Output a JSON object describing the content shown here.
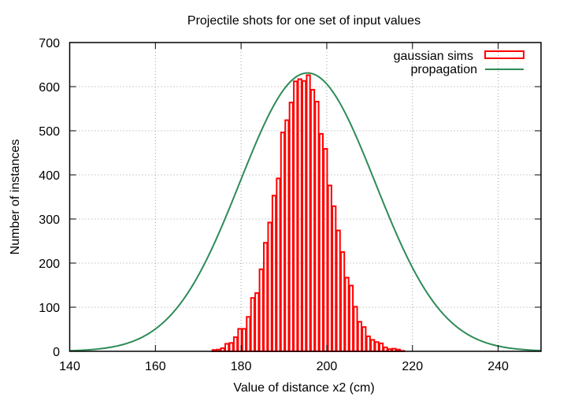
{
  "chart_data": {
    "type": "bar",
    "title": "Projectile shots for one set of input values",
    "xlabel": "Value of distance x2 (cm)",
    "ylabel": "Number of instances",
    "xlim": [
      140,
      250
    ],
    "ylim": [
      0,
      700
    ],
    "xticks": [
      "140",
      "160",
      "180",
      "200",
      "220",
      "240"
    ],
    "xtick_values": [
      140,
      160,
      180,
      200,
      220,
      240
    ],
    "yticks": [
      "0",
      "100",
      "200",
      "300",
      "400",
      "500",
      "600",
      "700"
    ],
    "ytick_values": [
      0,
      100,
      200,
      300,
      400,
      500,
      600,
      700
    ],
    "grid": true,
    "legend_position": "top-right",
    "colors": {
      "histogram": "#ff0000",
      "curve": "#2e8b57",
      "grid": "#a0a0a0"
    },
    "series": [
      {
        "name": "gaussian sims",
        "type": "histogram",
        "bin_width": 1,
        "bin_start": 173.2,
        "values": [
          3,
          4,
          7,
          17,
          19,
          32,
          51,
          51,
          78,
          121,
          132,
          186,
          246,
          292,
          353,
          392,
          496,
          524,
          564,
          612,
          617,
          613,
          626,
          593,
          566,
          493,
          459,
          376,
          329,
          274,
          225,
          167,
          149,
          101,
          67,
          55,
          34,
          26,
          21,
          18,
          9,
          5,
          6,
          4,
          1
        ]
      },
      {
        "name": "propagation",
        "type": "line",
        "function": "gaussian",
        "mean": 195.5,
        "sigma": 15.8,
        "peak": 631
      }
    ]
  }
}
